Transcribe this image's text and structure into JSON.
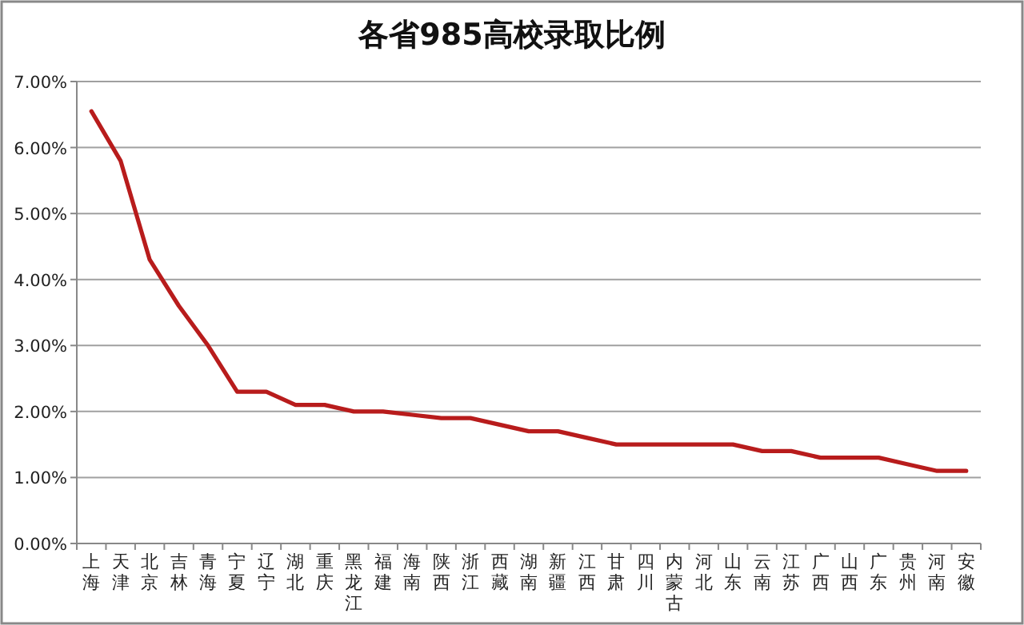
{
  "chart_data": {
    "type": "line",
    "title": "各省985高校录取比例",
    "categories": [
      "上海",
      "天津",
      "北京",
      "吉林",
      "青海",
      "宁夏",
      "辽宁",
      "湖北",
      "重庆",
      "黑龙江",
      "福建",
      "海南",
      "陕西",
      "浙江",
      "西藏",
      "湖南",
      "新疆",
      "江西",
      "甘肃",
      "四川",
      "内蒙古",
      "河北",
      "山东",
      "云南",
      "江苏",
      "广西",
      "山西",
      "广东",
      "贵州",
      "河南",
      "安徽"
    ],
    "series": [
      {
        "color": "#b81c1c",
        "values": [
          6.55,
          5.8,
          4.3,
          3.6,
          3.0,
          2.3,
          2.3,
          2.1,
          2.1,
          2.0,
          2.0,
          1.95,
          1.9,
          1.9,
          1.8,
          1.7,
          1.7,
          1.6,
          1.5,
          1.5,
          1.5,
          1.5,
          1.5,
          1.4,
          1.4,
          1.3,
          1.3,
          1.3,
          1.2,
          1.1,
          1.1
        ]
      }
    ],
    "ylim": [
      0,
      7
    ],
    "yticks": [
      {
        "value": 0,
        "label": "0.00%"
      },
      {
        "value": 1,
        "label": "1.00%"
      },
      {
        "value": 2,
        "label": "2.00%"
      },
      {
        "value": 3,
        "label": "3.00%"
      },
      {
        "value": 4,
        "label": "4.00%"
      },
      {
        "value": 5,
        "label": "5.00%"
      },
      {
        "value": 6,
        "label": "6.00%"
      },
      {
        "value": 7,
        "label": "7.00%"
      }
    ],
    "grid": "y",
    "marker": "none",
    "line_style": "solid"
  }
}
